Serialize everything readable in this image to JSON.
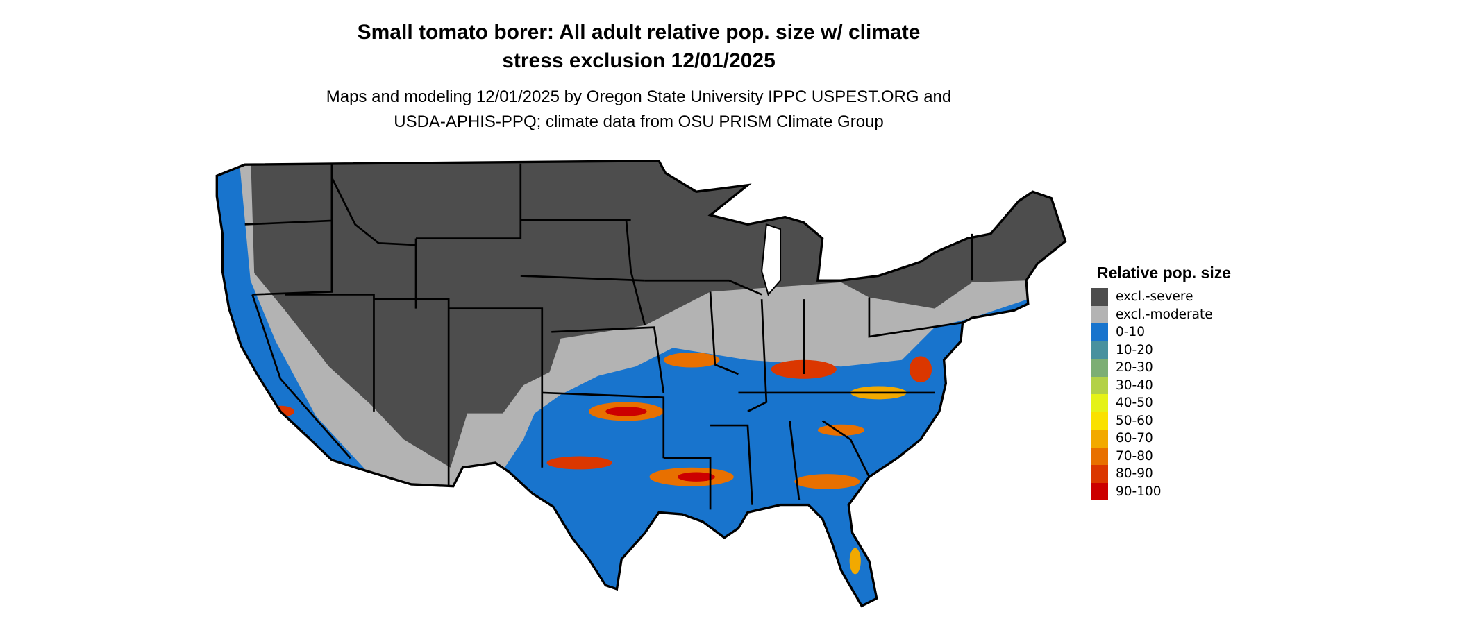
{
  "title": {
    "line1": "Small tomato borer: All adult relative pop. size w/ climate",
    "line2": "stress exclusion 12/01/2025"
  },
  "subtitle": {
    "line1": "Maps and modeling 12/01/2025 by Oregon State University IPPC USPEST.ORG and",
    "line2": "USDA-APHIS-PPQ; climate data from OSU PRISM Climate Group"
  },
  "legend": {
    "title": "Relative pop. size",
    "items": [
      {
        "label": "excl.-severe",
        "color": "#4d4d4d"
      },
      {
        "label": "excl.-moderate",
        "color": "#b3b3b3"
      },
      {
        "label": "0-10",
        "color": "#1874cd"
      },
      {
        "label": "10-20",
        "color": "#48919e"
      },
      {
        "label": "20-30",
        "color": "#7cae74"
      },
      {
        "label": "30-40",
        "color": "#b3d147"
      },
      {
        "label": "40-50",
        "color": "#e5f218"
      },
      {
        "label": "50-60",
        "color": "#fae100"
      },
      {
        "label": "60-70",
        "color": "#f2a900"
      },
      {
        "label": "70-80",
        "color": "#e87000"
      },
      {
        "label": "80-90",
        "color": "#db3700"
      },
      {
        "label": "90-100",
        "color": "#cc0000"
      }
    ]
  },
  "map": {
    "region": "Contiguous United States",
    "state_border_color": "#000000"
  }
}
